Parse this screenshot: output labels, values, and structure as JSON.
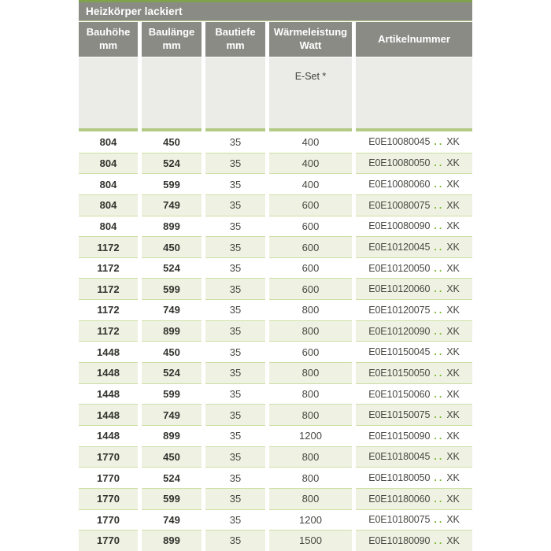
{
  "table": {
    "title": "Heizkörper lackiert",
    "columns": [
      {
        "line1": "Bauhöhe",
        "line2": "mm"
      },
      {
        "line1": "Baulänge",
        "line2": "mm"
      },
      {
        "line1": "Bautiefe",
        "line2": "mm"
      },
      {
        "line1": "Wärmeleistung",
        "line2": "Watt"
      },
      {
        "line1": "Artikelnummer",
        "line2": ""
      }
    ],
    "subheader": {
      "eset_label": "E-Set *"
    },
    "rows": [
      {
        "bauhoehe": "804",
        "baulaenge": "450",
        "bautiefe": "35",
        "watt": "400",
        "artikel_code": "E0E10080045",
        "artikel_dots": "..",
        "artikel_suffix": "XK"
      },
      {
        "bauhoehe": "804",
        "baulaenge": "524",
        "bautiefe": "35",
        "watt": "400",
        "artikel_code": "E0E10080050",
        "artikel_dots": "..",
        "artikel_suffix": "XK"
      },
      {
        "bauhoehe": "804",
        "baulaenge": "599",
        "bautiefe": "35",
        "watt": "400",
        "artikel_code": "E0E10080060",
        "artikel_dots": "..",
        "artikel_suffix": "XK"
      },
      {
        "bauhoehe": "804",
        "baulaenge": "749",
        "bautiefe": "35",
        "watt": "600",
        "artikel_code": "E0E10080075",
        "artikel_dots": "..",
        "artikel_suffix": "XK"
      },
      {
        "bauhoehe": "804",
        "baulaenge": "899",
        "bautiefe": "35",
        "watt": "600",
        "artikel_code": "E0E10080090",
        "artikel_dots": "..",
        "artikel_suffix": "XK"
      },
      {
        "bauhoehe": "1172",
        "baulaenge": "450",
        "bautiefe": "35",
        "watt": "600",
        "artikel_code": "E0E10120045",
        "artikel_dots": "..",
        "artikel_suffix": "XK"
      },
      {
        "bauhoehe": "1172",
        "baulaenge": "524",
        "bautiefe": "35",
        "watt": "600",
        "artikel_code": "E0E10120050",
        "artikel_dots": "..",
        "artikel_suffix": "XK"
      },
      {
        "bauhoehe": "1172",
        "baulaenge": "599",
        "bautiefe": "35",
        "watt": "600",
        "artikel_code": "E0E10120060",
        "artikel_dots": "..",
        "artikel_suffix": "XK"
      },
      {
        "bauhoehe": "1172",
        "baulaenge": "749",
        "bautiefe": "35",
        "watt": "800",
        "artikel_code": "E0E10120075",
        "artikel_dots": "..",
        "artikel_suffix": "XK"
      },
      {
        "bauhoehe": "1172",
        "baulaenge": "899",
        "bautiefe": "35",
        "watt": "800",
        "artikel_code": "E0E10120090",
        "artikel_dots": "..",
        "artikel_suffix": "XK"
      },
      {
        "bauhoehe": "1448",
        "baulaenge": "450",
        "bautiefe": "35",
        "watt": "600",
        "artikel_code": "E0E10150045",
        "artikel_dots": "..",
        "artikel_suffix": "XK"
      },
      {
        "bauhoehe": "1448",
        "baulaenge": "524",
        "bautiefe": "35",
        "watt": "800",
        "artikel_code": "E0E10150050",
        "artikel_dots": "..",
        "artikel_suffix": "XK"
      },
      {
        "bauhoehe": "1448",
        "baulaenge": "599",
        "bautiefe": "35",
        "watt": "800",
        "artikel_code": "E0E10150060",
        "artikel_dots": "..",
        "artikel_suffix": "XK"
      },
      {
        "bauhoehe": "1448",
        "baulaenge": "749",
        "bautiefe": "35",
        "watt": "800",
        "artikel_code": "E0E10150075",
        "artikel_dots": "..",
        "artikel_suffix": "XK"
      },
      {
        "bauhoehe": "1448",
        "baulaenge": "899",
        "bautiefe": "35",
        "watt": "1200",
        "artikel_code": "E0E10150090",
        "artikel_dots": "..",
        "artikel_suffix": "XK"
      },
      {
        "bauhoehe": "1770",
        "baulaenge": "450",
        "bautiefe": "35",
        "watt": "800",
        "artikel_code": "E0E10180045",
        "artikel_dots": "..",
        "artikel_suffix": "XK"
      },
      {
        "bauhoehe": "1770",
        "baulaenge": "524",
        "bautiefe": "35",
        "watt": "800",
        "artikel_code": "E0E10180050",
        "artikel_dots": "..",
        "artikel_suffix": "XK"
      },
      {
        "bauhoehe": "1770",
        "baulaenge": "599",
        "bautiefe": "35",
        "watt": "800",
        "artikel_code": "E0E10180060",
        "artikel_dots": "..",
        "artikel_suffix": "XK"
      },
      {
        "bauhoehe": "1770",
        "baulaenge": "749",
        "bautiefe": "35",
        "watt": "1200",
        "artikel_code": "E0E10180075",
        "artikel_dots": "..",
        "artikel_suffix": "XK"
      },
      {
        "bauhoehe": "1770",
        "baulaenge": "899",
        "bautiefe": "35",
        "watt": "1500",
        "artikel_code": "E0E10180090",
        "artikel_dots": "..",
        "artikel_suffix": "XK"
      }
    ]
  },
  "colors": {
    "accent_green_top": "#7fa24e",
    "band_green": "#b2ca84",
    "row_separator_green": "#cddfa4",
    "header_gray": "#8b8b86",
    "subheader_gray": "#ebebe7",
    "alt_row_bg": "#eff2e2",
    "dot_green": "#76b82a",
    "text_dark": "#33332f"
  }
}
